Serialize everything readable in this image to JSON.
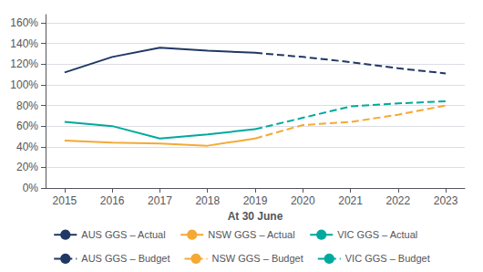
{
  "chart_data": {
    "type": "line",
    "x": [
      2015,
      2016,
      2017,
      2018,
      2019,
      2020,
      2021,
      2022,
      2023
    ],
    "xlabel": "At 30 June",
    "xlim": [
      2014.6,
      2023.4
    ],
    "xticks": [
      2015,
      2016,
      2017,
      2018,
      2019,
      2020,
      2021,
      2022,
      2023
    ],
    "ylim": [
      0.0,
      1.68
    ],
    "yticks": [
      {
        "value": 0.0,
        "label": "0%"
      },
      {
        "value": 0.2,
        "label": "20%"
      },
      {
        "value": 0.4,
        "label": "40%"
      },
      {
        "value": 0.6,
        "label": "60%"
      },
      {
        "value": 0.8,
        "label": "80%"
      },
      {
        "value": 1.0,
        "label": "100%"
      },
      {
        "value": 1.2,
        "label": "120%"
      },
      {
        "value": 1.4,
        "label": "140%"
      },
      {
        "value": 1.6,
        "label": "160%"
      }
    ],
    "grid": true,
    "legend": "bottom",
    "series": [
      {
        "name": "AUS GGS – Actual",
        "color": "#1f3864",
        "line_style": "solid",
        "values": [
          1.12,
          1.27,
          1.36,
          1.33,
          1.31,
          null,
          null,
          null,
          null
        ]
      },
      {
        "name": "NSW GGS – Actual",
        "color": "#f4a935",
        "line_style": "solid",
        "values": [
          0.46,
          0.44,
          0.43,
          0.41,
          0.48,
          null,
          null,
          null,
          null
        ]
      },
      {
        "name": "VIC GGS – Actual",
        "color": "#00a99d",
        "line_style": "solid",
        "values": [
          0.64,
          0.6,
          0.48,
          0.52,
          0.57,
          null,
          null,
          null,
          null
        ]
      },
      {
        "name": "AUS GGS – Budget",
        "color": "#1f3864",
        "line_style": "dashed",
        "values": [
          null,
          null,
          null,
          null,
          1.31,
          1.27,
          1.22,
          1.16,
          1.11
        ]
      },
      {
        "name": "NSW GGS – Budget",
        "color": "#f4a935",
        "line_style": "dashed",
        "values": [
          null,
          null,
          null,
          null,
          0.48,
          0.61,
          0.64,
          0.71,
          0.8
        ]
      },
      {
        "name": "VIC GGS – Budget",
        "color": "#00a99d",
        "line_style": "dashed",
        "values": [
          null,
          null,
          null,
          null,
          0.57,
          0.68,
          0.79,
          0.82,
          0.84
        ]
      }
    ]
  }
}
